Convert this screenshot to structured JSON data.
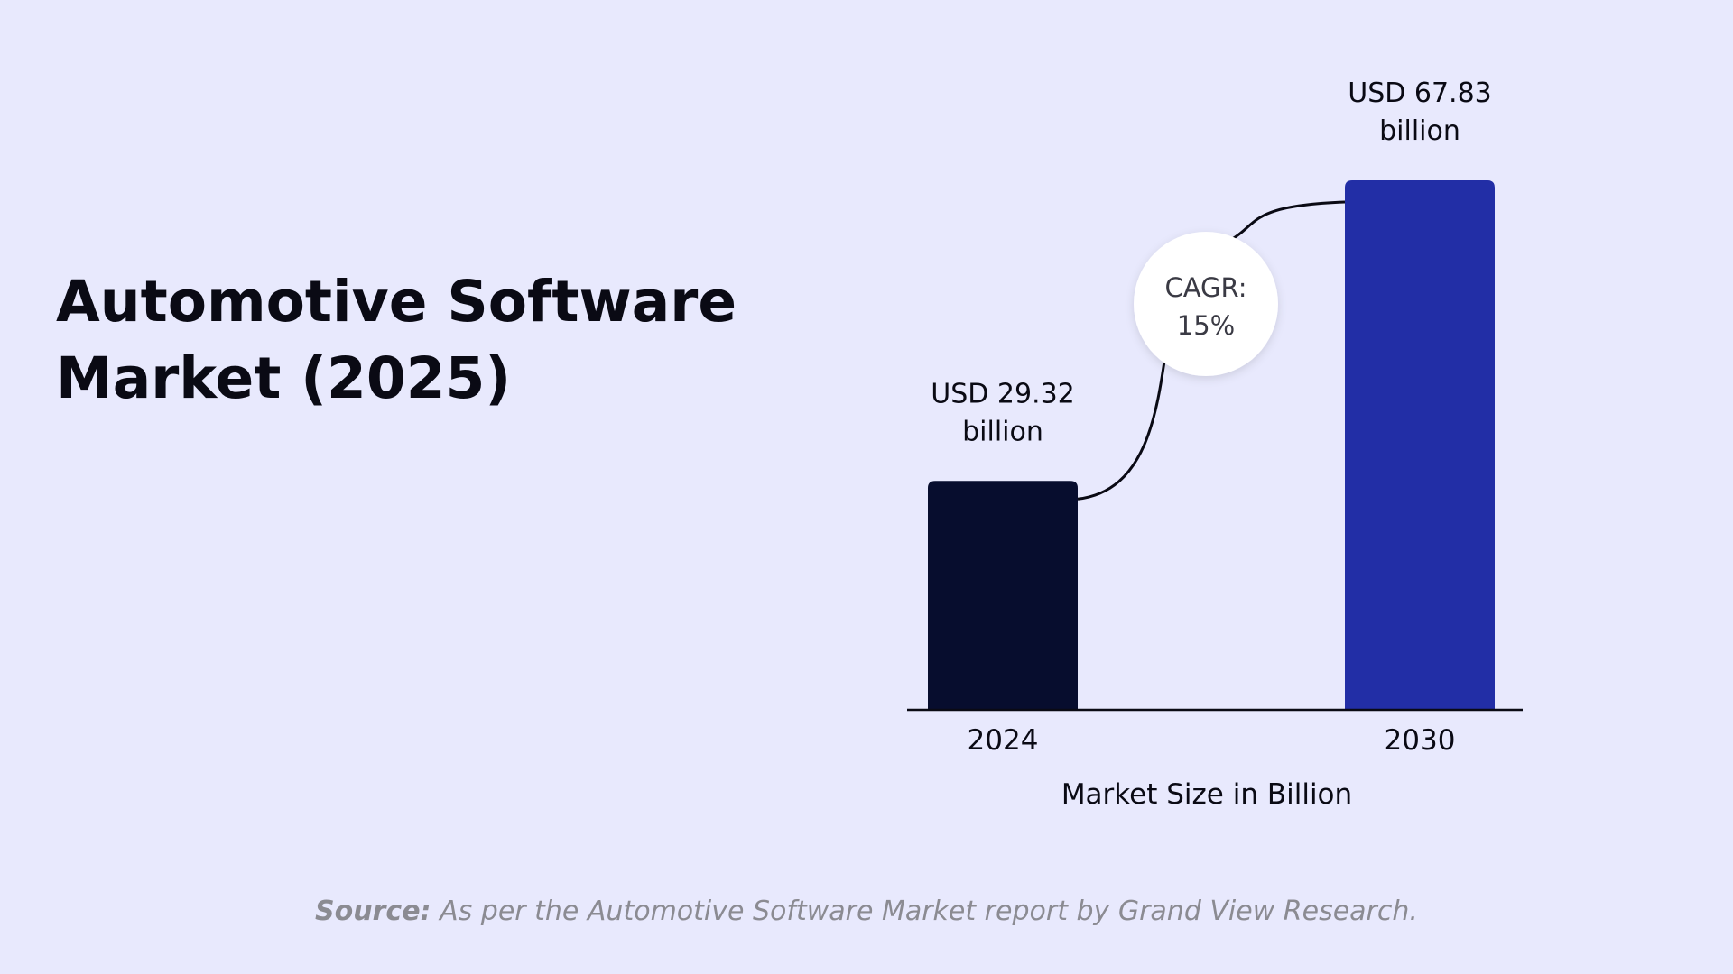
{
  "title_lines": [
    "Automotive Software",
    "Market (2025)"
  ],
  "chart_data": {
    "type": "bar",
    "title": "Automotive Software Market (2025)",
    "categories": [
      "2024",
      "2030"
    ],
    "values": [
      29.32,
      67.83
    ],
    "data_labels": [
      [
        "USD 29.32",
        "billion"
      ],
      [
        "USD 67.83",
        "billion"
      ]
    ],
    "xlabel": "Market Size in Billion",
    "ylabel": "",
    "ylim": [
      0,
      67.83
    ],
    "grid": false,
    "bar_colors": [
      "#070d2e",
      "#222ea6"
    ],
    "annotation": {
      "lines": [
        "CAGR:",
        "15%"
      ]
    }
  },
  "source": {
    "label": "Source:",
    "text": " As per the Automotive Software Market report by Grand View Research."
  },
  "colors": {
    "background": "#e8e9fd",
    "title": "#0a0a14",
    "axis": "#0a0a14",
    "source": "#8b8b92",
    "badge_fill": "#ffffff",
    "badge_text": "#3a3a44"
  }
}
